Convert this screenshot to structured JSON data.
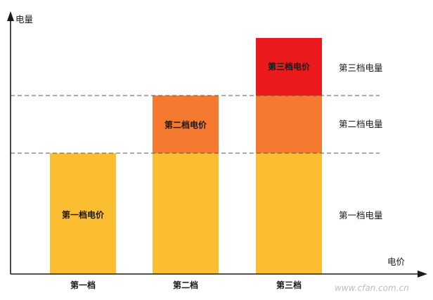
{
  "axes": {
    "y_label": "电量",
    "x_label": "电价"
  },
  "tiers": {
    "colors": [
      "#fbbd32",
      "#f5792f",
      "#ea1a1d"
    ],
    "right_labels": [
      "第一档电量",
      "第二档电量",
      "第三档电量"
    ],
    "price_labels": [
      "第一档电价",
      "第二档电价",
      "第三档电价"
    ]
  },
  "categories": [
    "第一档",
    "第二档",
    "第三档"
  ],
  "bars_tiers_filled": [
    1,
    2,
    3
  ],
  "watermark": "www.cfan.com.cn"
}
